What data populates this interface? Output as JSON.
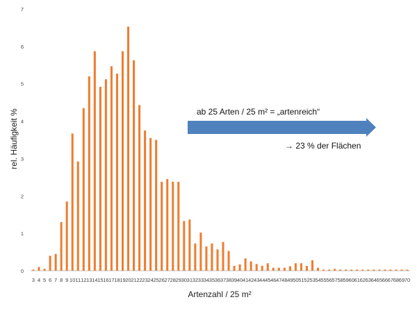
{
  "chart_data": {
    "type": "bar",
    "xlabel": "Artenzahl / 25 m²",
    "ylabel": "rel. Häufigkeit %",
    "ylim": [
      0,
      7
    ],
    "yticks": [
      "0",
      "1",
      "2",
      "3",
      "4",
      "5",
      "6",
      "7"
    ],
    "grid": false,
    "bar_color": "#ED7D31",
    "categories": [
      "3",
      "4",
      "5",
      "6",
      "7",
      "8",
      "9",
      "10",
      "11",
      "12",
      "13",
      "14",
      "15",
      "16",
      "17",
      "18",
      "19",
      "20",
      "21",
      "22",
      "23",
      "24",
      "25",
      "26",
      "27",
      "28",
      "29",
      "30",
      "31",
      "32",
      "33",
      "34",
      "35",
      "36",
      "37",
      "38",
      "39",
      "40",
      "41",
      "42",
      "43",
      "44",
      "45",
      "46",
      "47",
      "48",
      "49",
      "50",
      "51",
      "52",
      "53",
      "54",
      "55",
      "56",
      "57",
      "58",
      "59",
      "60",
      "61",
      "62",
      "63",
      "64",
      "65",
      "66",
      "67",
      "68",
      "69",
      "70"
    ],
    "values": [
      0.03,
      0.1,
      0.05,
      0.4,
      0.45,
      1.3,
      1.85,
      3.67,
      2.92,
      4.35,
      5.2,
      5.87,
      4.92,
      5.12,
      5.47,
      5.27,
      5.87,
      6.53,
      5.63,
      4.43,
      3.75,
      3.55,
      3.5,
      2.38,
      2.45,
      2.38,
      2.38,
      1.33,
      1.37,
      0.73,
      1.02,
      0.65,
      0.73,
      0.57,
      0.77,
      0.53,
      0.13,
      0.17,
      0.33,
      0.25,
      0.18,
      0.13,
      0.2,
      0.08,
      0.08,
      0.08,
      0.12,
      0.2,
      0.2,
      0.13,
      0.28,
      0.08,
      0.03,
      0.03,
      0.05,
      0.03,
      0.03,
      0.03,
      0.03,
      0.03,
      0.03,
      0.03,
      0.03,
      0.03,
      0.03,
      0.03,
      0.03,
      0.03
    ],
    "annotations": {
      "threshold_text": "ab 25 Arten / 25 m²  = „artenreich“",
      "arrow_color": "#4F81BD",
      "result_text": "→ 23 % der Flächen"
    }
  }
}
